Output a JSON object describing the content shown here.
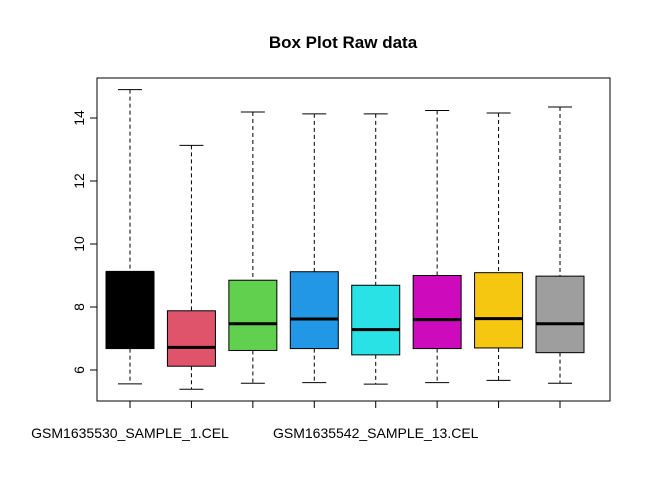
{
  "chart_data": {
    "type": "boxplot",
    "title": "Box Plot Raw data",
    "xlabel": "",
    "ylabel": "",
    "ylim": [
      5,
      15
    ],
    "yticks": [
      6,
      8,
      10,
      12,
      14
    ],
    "categories": [
      "GSM1635530_SAMPLE_1.CEL",
      "",
      "",
      "",
      "GSM1635542_SAMPLE_13.CEL",
      "",
      "",
      ""
    ],
    "boxes": [
      {
        "color": "#000000",
        "min": 5.56,
        "q1": 6.68,
        "median": 9.1,
        "q3": 9.12,
        "max": 14.9
      },
      {
        "color": "#DF536B",
        "min": 5.39,
        "q1": 6.12,
        "median": 6.72,
        "q3": 7.88,
        "max": 13.13
      },
      {
        "color": "#61D04F",
        "min": 5.58,
        "q1": 6.62,
        "median": 7.47,
        "q3": 8.85,
        "max": 14.19
      },
      {
        "color": "#2297E6",
        "min": 5.6,
        "q1": 6.68,
        "median": 7.62,
        "q3": 9.12,
        "max": 14.13
      },
      {
        "color": "#28E2E5",
        "min": 5.55,
        "q1": 6.48,
        "median": 7.28,
        "q3": 8.69,
        "max": 14.13
      },
      {
        "color": "#CD0BBC",
        "min": 5.6,
        "q1": 6.68,
        "median": 7.6,
        "q3": 9.0,
        "max": 14.24
      },
      {
        "color": "#F5C710",
        "min": 5.67,
        "q1": 6.7,
        "median": 7.63,
        "q3": 9.09,
        "max": 14.16
      },
      {
        "color": "#9E9E9E",
        "min": 5.58,
        "q1": 6.55,
        "median": 7.47,
        "q3": 8.98,
        "max": 14.35
      }
    ]
  }
}
